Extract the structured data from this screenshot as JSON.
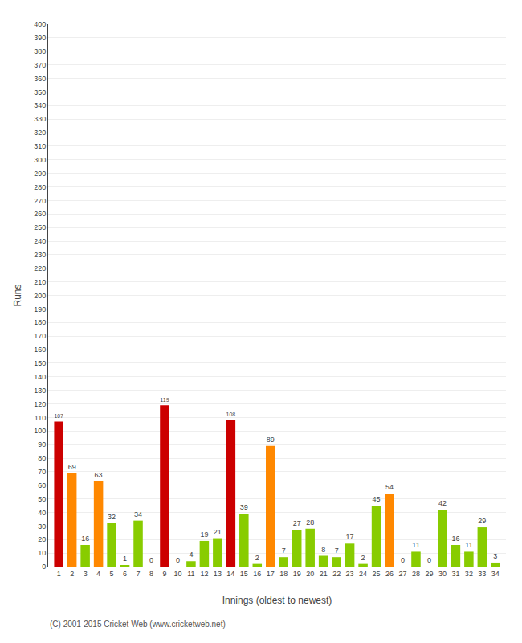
{
  "chart_data": {
    "type": "bar",
    "xlabel": "Innings (oldest to newest)",
    "ylabel": "Runs",
    "x": [
      1,
      2,
      3,
      4,
      5,
      6,
      7,
      8,
      9,
      10,
      11,
      12,
      13,
      14,
      15,
      16,
      17,
      18,
      19,
      20,
      21,
      22,
      23,
      24,
      25,
      26,
      27,
      28,
      29,
      30,
      31,
      32,
      33,
      34
    ],
    "values": [
      107,
      69,
      16,
      63,
      32,
      1,
      34,
      0,
      119,
      0,
      4,
      19,
      21,
      108,
      39,
      2,
      89,
      7,
      27,
      28,
      8,
      7,
      17,
      2,
      45,
      54,
      0,
      11,
      0,
      42,
      16,
      11,
      29,
      3
    ],
    "colors": [
      "#cc0000",
      "#ff8800",
      "#88cc00",
      "#ff8800",
      "#88cc00",
      "#88cc00",
      "#88cc00",
      "#88cc00",
      "#cc0000",
      "#88cc00",
      "#88cc00",
      "#88cc00",
      "#88cc00",
      "#cc0000",
      "#88cc00",
      "#88cc00",
      "#ff8800",
      "#88cc00",
      "#88cc00",
      "#88cc00",
      "#88cc00",
      "#88cc00",
      "#88cc00",
      "#88cc00",
      "#88cc00",
      "#ff8800",
      "#88cc00",
      "#88cc00",
      "#88cc00",
      "#88cc00",
      "#88cc00",
      "#88cc00",
      "#88cc00",
      "#88cc00"
    ],
    "xlim": [
      0.2,
      34.8
    ],
    "xticks": [
      1,
      2,
      3,
      4,
      5,
      6,
      7,
      8,
      9,
      10,
      11,
      12,
      13,
      14,
      15,
      16,
      17,
      18,
      19,
      20,
      21,
      22,
      23,
      24,
      25,
      26,
      27,
      28,
      29,
      30,
      31,
      32,
      33,
      34
    ],
    "ylim": [
      0,
      400
    ],
    "yticks": [
      0,
      10,
      20,
      30,
      40,
      50,
      60,
      70,
      80,
      90,
      100,
      110,
      120,
      130,
      140,
      150,
      160,
      170,
      180,
      190,
      200,
      210,
      220,
      230,
      240,
      250,
      260,
      270,
      280,
      290,
      300,
      310,
      320,
      330,
      340,
      350,
      360,
      370,
      380,
      390,
      400
    ],
    "grid": true,
    "data_labels": true,
    "annotations": [
      "(C) 2001-2015 Cricket Web (www.cricketweb.net)"
    ]
  }
}
